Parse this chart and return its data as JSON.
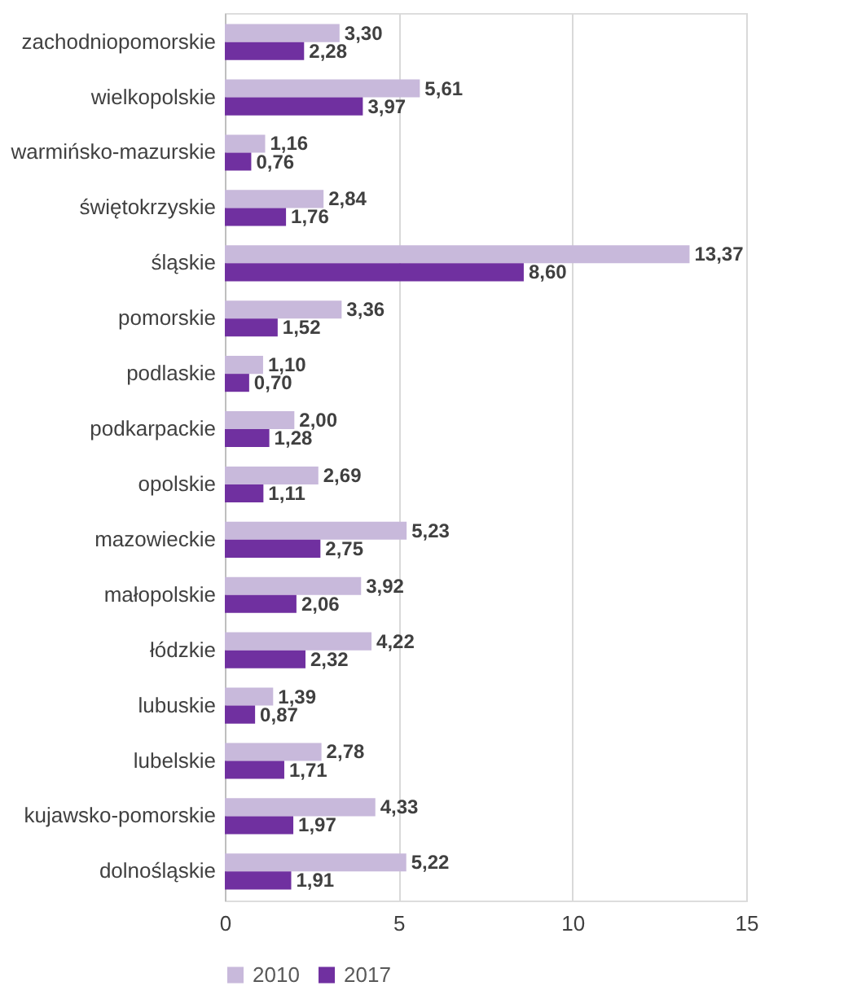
{
  "chart_data": {
    "type": "bar",
    "orientation": "horizontal",
    "categories": [
      "zachodniopomorskie",
      "wielkopolskie",
      "warmińsko-mazurskie",
      "świętokrzyskie",
      "śląskie",
      "pomorskie",
      "podlaskie",
      "podkarpackie",
      "opolskie",
      "mazowieckie",
      "małopolskie",
      "łódzkie",
      "lubuskie",
      "lubelskie",
      "kujawsko-pomorskie",
      "dolnośląskie"
    ],
    "series": [
      {
        "name": "2010",
        "color": "#c8b9db",
        "values": [
          3.3,
          5.61,
          1.16,
          2.84,
          13.37,
          3.36,
          1.1,
          2.0,
          2.69,
          5.23,
          3.92,
          4.22,
          1.39,
          2.78,
          4.33,
          5.22
        ],
        "value_labels": [
          "3,30",
          "5,61",
          "1,16",
          "2,84",
          "13,37",
          "3,36",
          "1,10",
          "2,00",
          "2,69",
          "5,23",
          "3,92",
          "4,22",
          "1,39",
          "2,78",
          "4,33",
          "5,22"
        ]
      },
      {
        "name": "2017",
        "color": "#7030a0",
        "values": [
          2.28,
          3.97,
          0.76,
          1.76,
          8.6,
          1.52,
          0.7,
          1.28,
          1.11,
          2.75,
          2.06,
          2.32,
          0.87,
          1.71,
          1.97,
          1.91
        ],
        "value_labels": [
          "2,28",
          "3,97",
          "0,76",
          "1,76",
          "8,60",
          "1,52",
          "0,70",
          "1,28",
          "1,11",
          "2,75",
          "2,06",
          "2,32",
          "0,87",
          "1,71",
          "1,97",
          "1,91"
        ]
      }
    ],
    "xlim": [
      0,
      15
    ],
    "xticks": [
      0,
      5,
      10,
      15
    ],
    "grid": "x",
    "legend": "bottom"
  }
}
